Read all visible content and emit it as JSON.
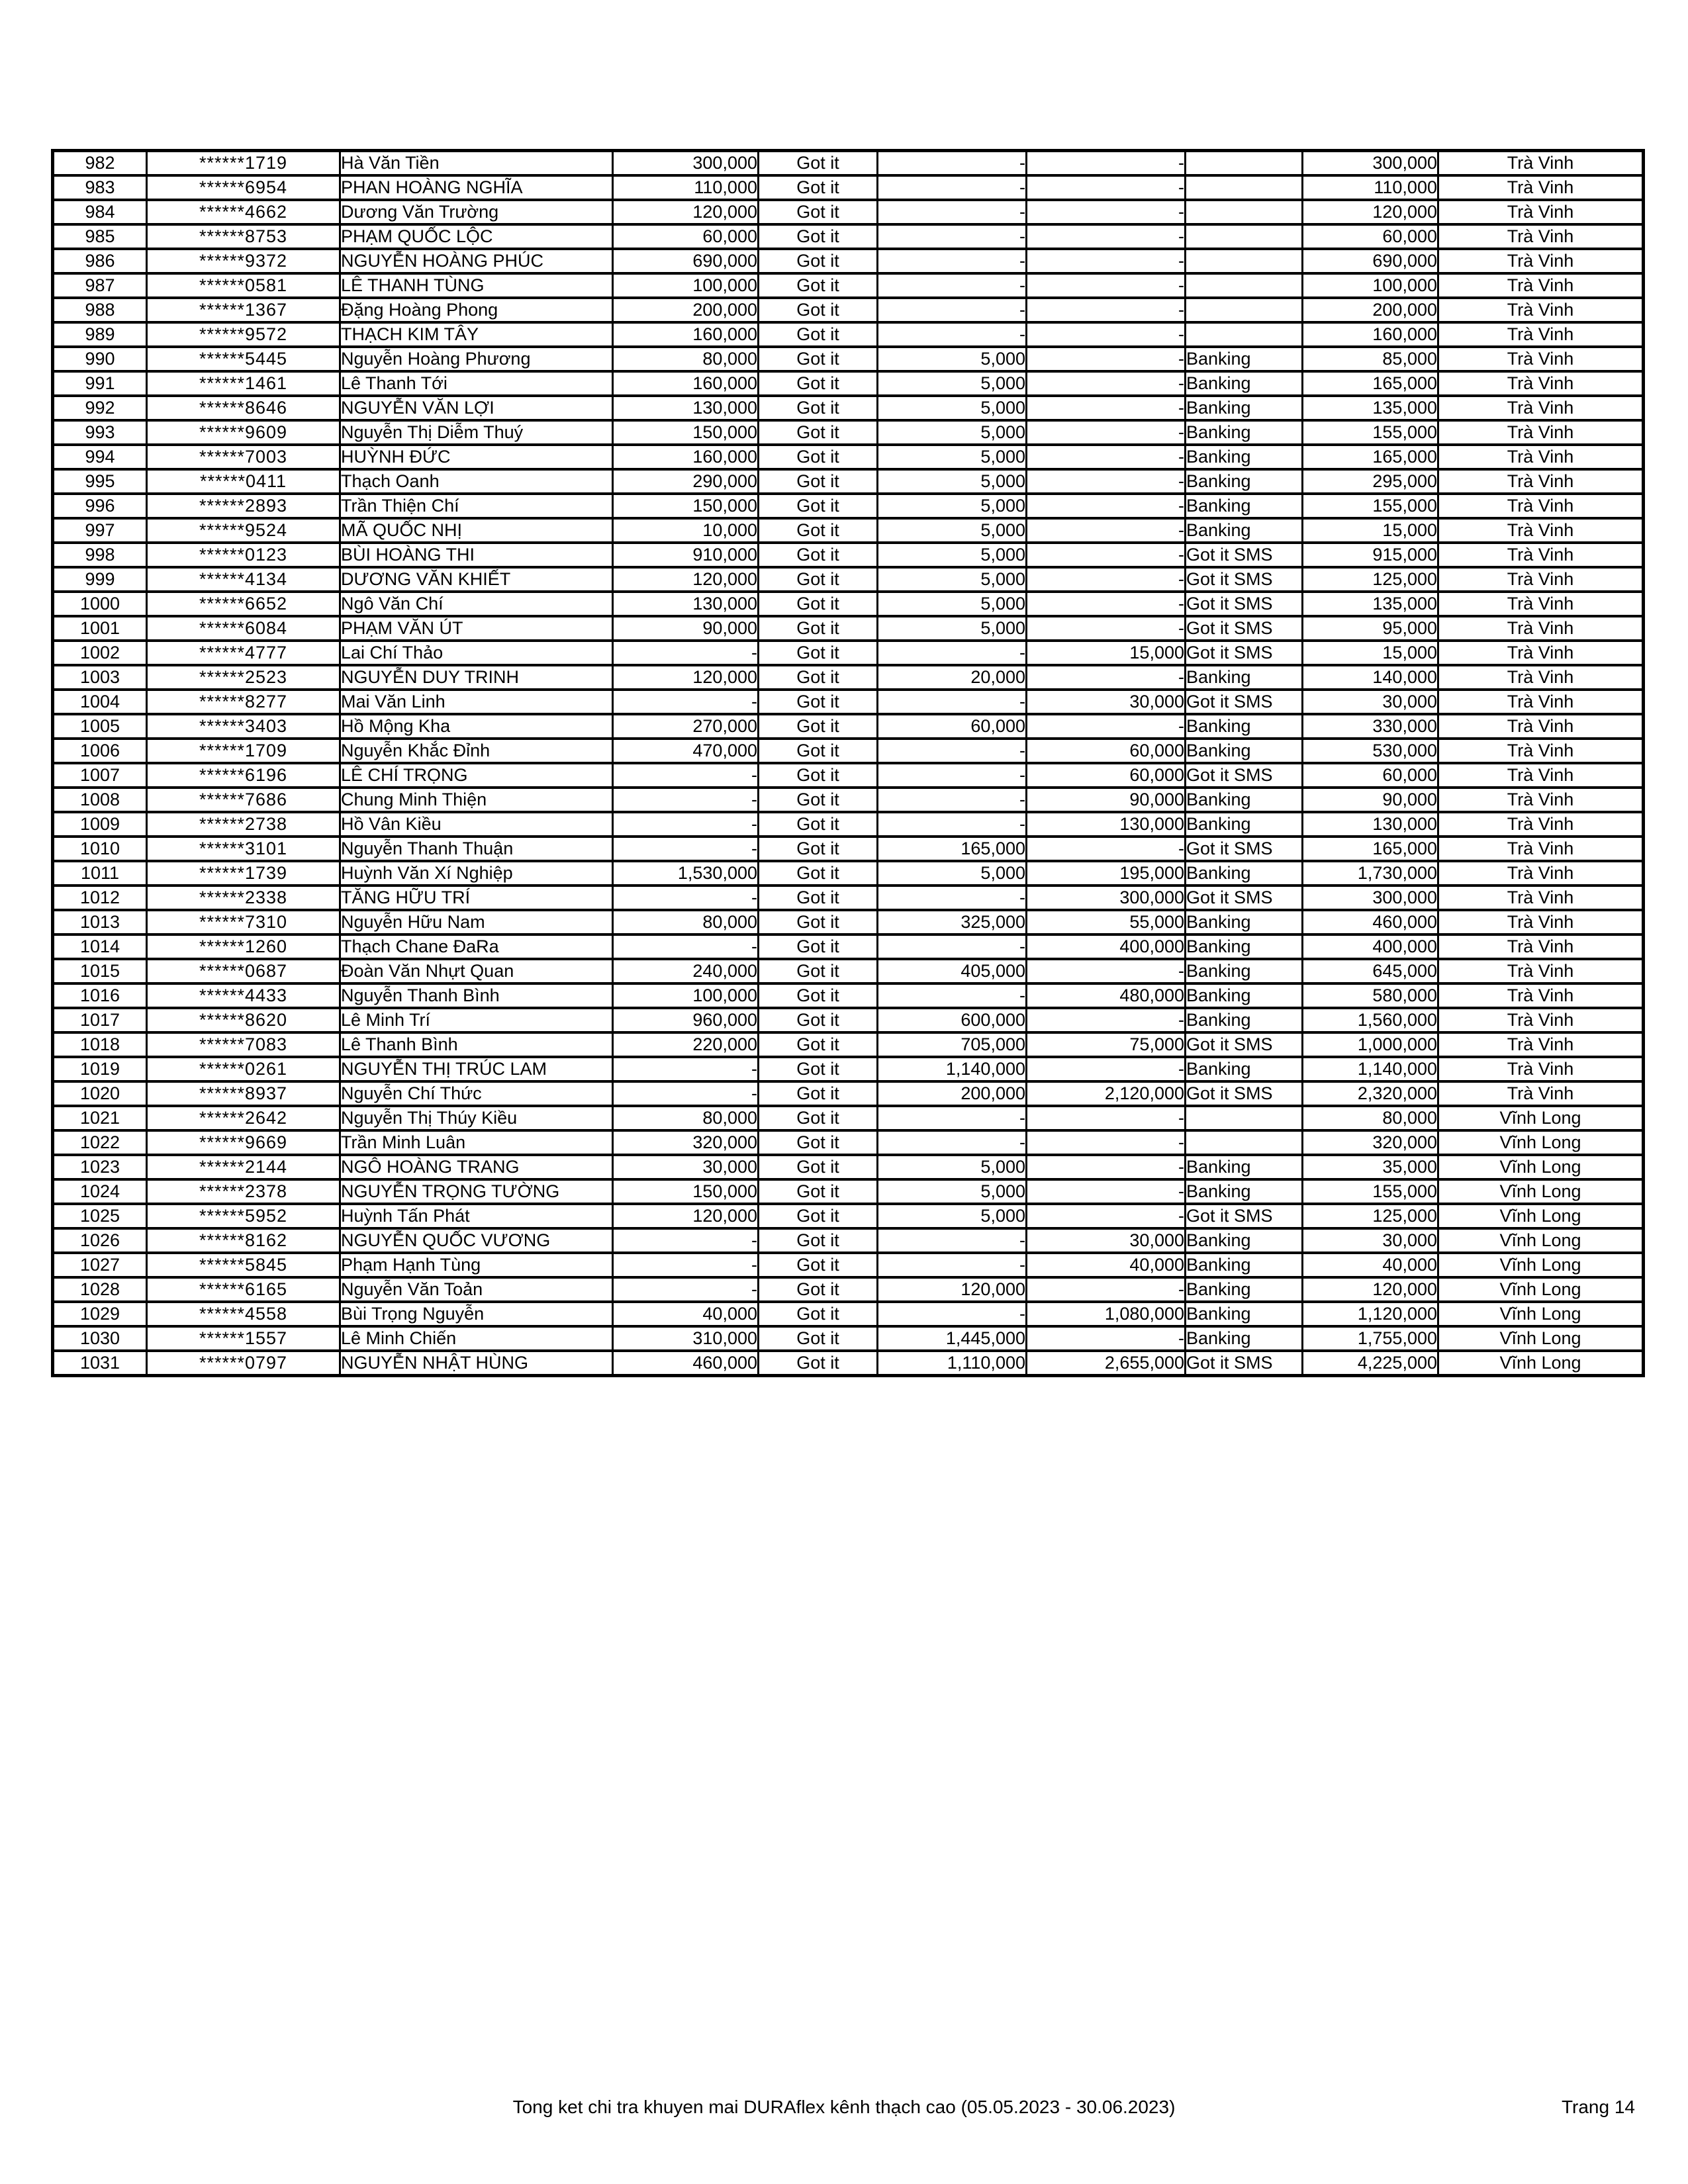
{
  "footer": {
    "summary": "Tong ket chi tra khuyen mai DURAflex kênh thạch cao (05.05.2023 - 30.06.2023)",
    "page_label": "Trang 14"
  },
  "table": {
    "rows": [
      [
        "982",
        "******1719",
        "Hà Văn Tiền",
        "300,000",
        "Got it",
        "-",
        "-",
        "",
        "300,000",
        "Trà Vinh"
      ],
      [
        "983",
        "******6954",
        "PHAN HOÀNG NGHĨA",
        "110,000",
        "Got it",
        "-",
        "-",
        "",
        "110,000",
        "Trà Vinh"
      ],
      [
        "984",
        "******4662",
        "Dương Văn Trường",
        "120,000",
        "Got it",
        "-",
        "-",
        "",
        "120,000",
        "Trà Vinh"
      ],
      [
        "985",
        "******8753",
        "PHẠM QUỐC LỘC",
        "60,000",
        "Got it",
        "-",
        "-",
        "",
        "60,000",
        "Trà Vinh"
      ],
      [
        "986",
        "******9372",
        "NGUYỄN HOÀNG PHÚC",
        "690,000",
        "Got it",
        "-",
        "-",
        "",
        "690,000",
        "Trà Vinh"
      ],
      [
        "987",
        "******0581",
        "LÊ THANH TÙNG",
        "100,000",
        "Got it",
        "-",
        "-",
        "",
        "100,000",
        "Trà Vinh"
      ],
      [
        "988",
        "******1367",
        "Đặng Hoàng Phong",
        "200,000",
        "Got it",
        "-",
        "-",
        "",
        "200,000",
        "Trà Vinh"
      ],
      [
        "989",
        "******9572",
        "THẠCH KIM TÂY",
        "160,000",
        "Got it",
        "-",
        "-",
        "",
        "160,000",
        "Trà Vinh"
      ],
      [
        "990",
        "******5445",
        "Nguyễn Hoàng Phương",
        "80,000",
        "Got it",
        "5,000",
        "-",
        "Banking",
        "85,000",
        "Trà Vinh"
      ],
      [
        "991",
        "******1461",
        "Lê Thanh Tới",
        "160,000",
        "Got it",
        "5,000",
        "-",
        "Banking",
        "165,000",
        "Trà Vinh"
      ],
      [
        "992",
        "******8646",
        "NGUYỄN VĂN LỢI",
        "130,000",
        "Got it",
        "5,000",
        "-",
        "Banking",
        "135,000",
        "Trà Vinh"
      ],
      [
        "993",
        "******9609",
        "Nguyễn Thị Diễm Thuý",
        "150,000",
        "Got it",
        "5,000",
        "-",
        "Banking",
        "155,000",
        "Trà Vinh"
      ],
      [
        "994",
        "******7003",
        "HUỲNH ĐỨC",
        "160,000",
        "Got it",
        "5,000",
        "-",
        "Banking",
        "165,000",
        "Trà Vinh"
      ],
      [
        "995",
        "******0411",
        "Thạch Oanh",
        "290,000",
        "Got it",
        "5,000",
        "-",
        "Banking",
        "295,000",
        "Trà Vinh"
      ],
      [
        "996",
        "******2893",
        "Trần Thiện Chí",
        "150,000",
        "Got it",
        "5,000",
        "-",
        "Banking",
        "155,000",
        "Trà Vinh"
      ],
      [
        "997",
        "******9524",
        "MÃ QUỐC NHỊ",
        "10,000",
        "Got it",
        "5,000",
        "-",
        "Banking",
        "15,000",
        "Trà Vinh"
      ],
      [
        "998",
        "******0123",
        "BÙI HOÀNG THI",
        "910,000",
        "Got it",
        "5,000",
        "-",
        "Got it SMS",
        "915,000",
        "Trà Vinh"
      ],
      [
        "999",
        "******4134",
        "DƯƠNG VĂN KHIẾT",
        "120,000",
        "Got it",
        "5,000",
        "-",
        "Got it SMS",
        "125,000",
        "Trà Vinh"
      ],
      [
        "1000",
        "******6652",
        "Ngô Văn Chí",
        "130,000",
        "Got it",
        "5,000",
        "-",
        "Got it SMS",
        "135,000",
        "Trà Vinh"
      ],
      [
        "1001",
        "******6084",
        "PHẠM VĂN ÚT",
        "90,000",
        "Got it",
        "5,000",
        "-",
        "Got it SMS",
        "95,000",
        "Trà Vinh"
      ],
      [
        "1002",
        "******4777",
        "Lai Chí Thảo",
        "-",
        "Got it",
        "-",
        "15,000",
        "Got it SMS",
        "15,000",
        "Trà Vinh"
      ],
      [
        "1003",
        "******2523",
        "NGUYỄN DUY TRINH",
        "120,000",
        "Got it",
        "20,000",
        "-",
        "Banking",
        "140,000",
        "Trà Vinh"
      ],
      [
        "1004",
        "******8277",
        "Mai Văn Linh",
        "-",
        "Got it",
        "-",
        "30,000",
        "Got it SMS",
        "30,000",
        "Trà Vinh"
      ],
      [
        "1005",
        "******3403",
        "Hồ Mộng Kha",
        "270,000",
        "Got it",
        "60,000",
        "-",
        "Banking",
        "330,000",
        "Trà Vinh"
      ],
      [
        "1006",
        "******1709",
        "Nguyễn Khắc Đỉnh",
        "470,000",
        "Got it",
        "-",
        "60,000",
        "Banking",
        "530,000",
        "Trà Vinh"
      ],
      [
        "1007",
        "******6196",
        "LÊ CHÍ TRỌNG",
        "-",
        "Got it",
        "-",
        "60,000",
        "Got it SMS",
        "60,000",
        "Trà Vinh"
      ],
      [
        "1008",
        "******7686",
        "Chung Minh Thiện",
        "-",
        "Got it",
        "-",
        "90,000",
        "Banking",
        "90,000",
        "Trà Vinh"
      ],
      [
        "1009",
        "******2738",
        "Hồ Vân Kiều",
        "-",
        "Got it",
        "-",
        "130,000",
        "Banking",
        "130,000",
        "Trà Vinh"
      ],
      [
        "1010",
        "******3101",
        "Nguyễn Thanh Thuận",
        "-",
        "Got it",
        "165,000",
        "-",
        "Got it SMS",
        "165,000",
        "Trà Vinh"
      ],
      [
        "1011",
        "******1739",
        "Huỳnh Văn Xí Nghiệp",
        "1,530,000",
        "Got it",
        "5,000",
        "195,000",
        "Banking",
        "1,730,000",
        "Trà Vinh"
      ],
      [
        "1012",
        "******2338",
        "TĂNG HỮU TRÍ",
        "-",
        "Got it",
        "-",
        "300,000",
        "Got it SMS",
        "300,000",
        "Trà Vinh"
      ],
      [
        "1013",
        "******7310",
        "Nguyễn Hữu Nam",
        "80,000",
        "Got it",
        "325,000",
        "55,000",
        "Banking",
        "460,000",
        "Trà Vinh"
      ],
      [
        "1014",
        "******1260",
        "Thạch Chane ĐaRa",
        "-",
        "Got it",
        "-",
        "400,000",
        "Banking",
        "400,000",
        "Trà Vinh"
      ],
      [
        "1015",
        "******0687",
        "Đoàn Văn Nhựt Quan",
        "240,000",
        "Got it",
        "405,000",
        "-",
        "Banking",
        "645,000",
        "Trà Vinh"
      ],
      [
        "1016",
        "******4433",
        "Nguyễn Thanh Bình",
        "100,000",
        "Got it",
        "-",
        "480,000",
        "Banking",
        "580,000",
        "Trà Vinh"
      ],
      [
        "1017",
        "******8620",
        "Lê Minh Trí",
        "960,000",
        "Got it",
        "600,000",
        "-",
        "Banking",
        "1,560,000",
        "Trà Vinh"
      ],
      [
        "1018",
        "******7083",
        "Lê Thanh Bình",
        "220,000",
        "Got it",
        "705,000",
        "75,000",
        "Got it SMS",
        "1,000,000",
        "Trà Vinh"
      ],
      [
        "1019",
        "******0261",
        "NGUYỄN THỊ TRÚC LAM",
        "-",
        "Got it",
        "1,140,000",
        "-",
        "Banking",
        "1,140,000",
        "Trà Vinh"
      ],
      [
        "1020",
        "******8937",
        "Nguyễn Chí Thức",
        "-",
        "Got it",
        "200,000",
        "2,120,000",
        "Got it SMS",
        "2,320,000",
        "Trà Vinh"
      ],
      [
        "1021",
        "******2642",
        "Nguyễn Thị Thúy Kiều",
        "80,000",
        "Got it",
        "-",
        "-",
        "",
        "80,000",
        "Vĩnh Long"
      ],
      [
        "1022",
        "******9669",
        "Trần Minh Luân",
        "320,000",
        "Got it",
        "-",
        "-",
        "",
        "320,000",
        "Vĩnh Long"
      ],
      [
        "1023",
        "******2144",
        "NGÔ HOÀNG TRANG",
        "30,000",
        "Got it",
        "5,000",
        "-",
        "Banking",
        "35,000",
        "Vĩnh Long"
      ],
      [
        "1024",
        "******2378",
        "NGUYỄN TRỌNG TƯỜNG",
        "150,000",
        "Got it",
        "5,000",
        "-",
        "Banking",
        "155,000",
        "Vĩnh Long"
      ],
      [
        "1025",
        "******5952",
        "Huỳnh Tấn Phát",
        "120,000",
        "Got it",
        "5,000",
        "-",
        "Got it SMS",
        "125,000",
        "Vĩnh Long"
      ],
      [
        "1026",
        "******8162",
        "NGUYỄN QUỐC VƯƠNG",
        "-",
        "Got it",
        "-",
        "30,000",
        "Banking",
        "30,000",
        "Vĩnh Long"
      ],
      [
        "1027",
        "******5845",
        "Phạm Hạnh Tùng",
        "-",
        "Got it",
        "-",
        "40,000",
        "Banking",
        "40,000",
        "Vĩnh Long"
      ],
      [
        "1028",
        "******6165",
        "Nguyễn Văn Toản",
        "-",
        "Got it",
        "120,000",
        "-",
        "Banking",
        "120,000",
        "Vĩnh Long"
      ],
      [
        "1029",
        "******4558",
        "Bùi Trọng Nguyễn",
        "40,000",
        "Got it",
        "-",
        "1,080,000",
        "Banking",
        "1,120,000",
        "Vĩnh Long"
      ],
      [
        "1030",
        "******1557",
        "Lê Minh Chiến",
        "310,000",
        "Got it",
        "1,445,000",
        "-",
        "Banking",
        "1,755,000",
        "Vĩnh Long"
      ],
      [
        "1031",
        "******0797",
        "NGUYỄN NHẬT HÙNG",
        "460,000",
        "Got it",
        "1,110,000",
        "2,655,000",
        "Got it SMS",
        "4,225,000",
        "Vĩnh Long"
      ]
    ]
  }
}
